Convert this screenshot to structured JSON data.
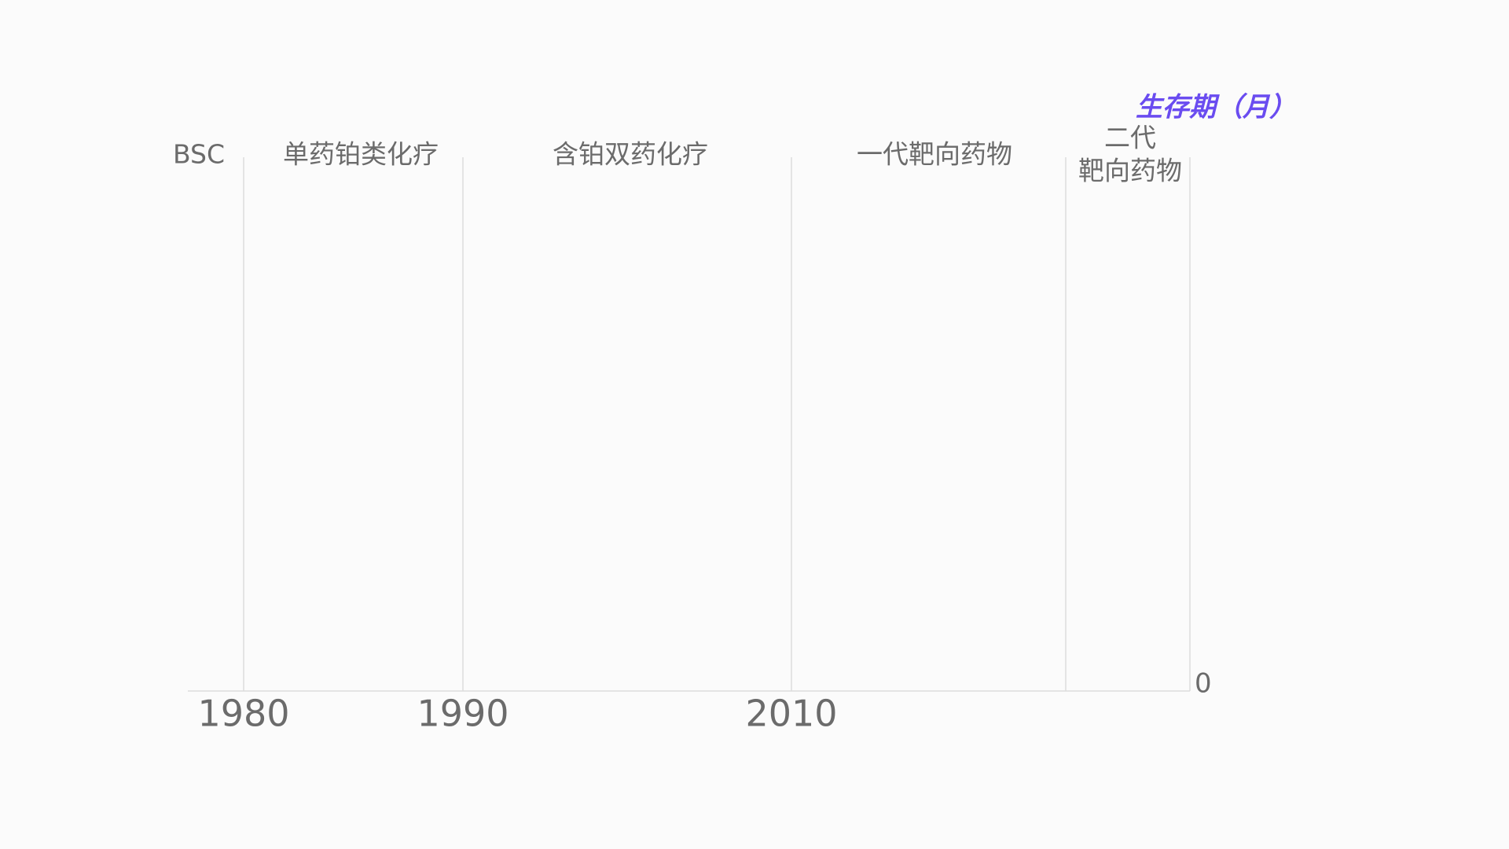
{
  "chart_data": {
    "type": "timeline",
    "y_label": "生存期（月）",
    "yticks": [
      0
    ],
    "eras": [
      [
        "BSC"
      ],
      [
        "单药铂类化疗"
      ],
      [
        "含铂双药化疗"
      ],
      [
        "一代靶向药物"
      ],
      [
        "二代",
        "靶向药物"
      ]
    ],
    "xticks": [
      1980,
      1990,
      2010
    ]
  }
}
